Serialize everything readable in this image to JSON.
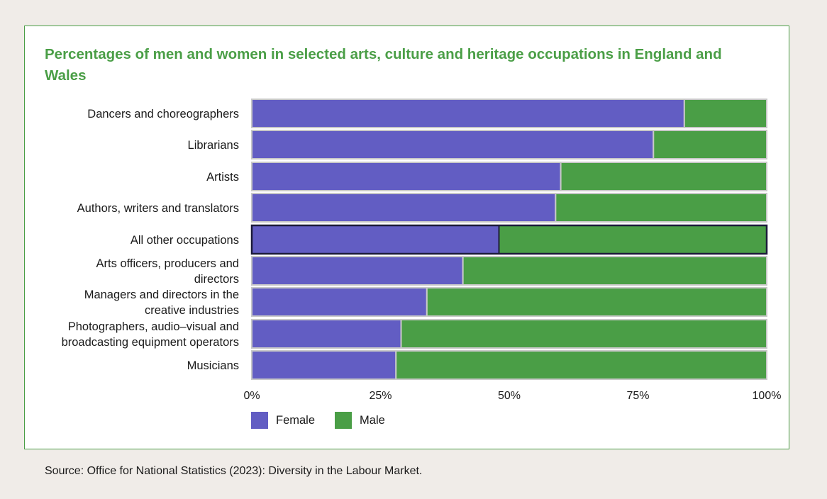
{
  "chart_data": {
    "type": "bar",
    "orientation": "horizontal",
    "stacked": true,
    "title": "Percentages of men and women in selected arts, culture and heritage occupations in England and Wales",
    "categories": [
      [
        "Dancers and choreographers"
      ],
      [
        "Librarians"
      ],
      [
        "Artists"
      ],
      [
        "Authors, writers and translators"
      ],
      [
        "All other occupations"
      ],
      [
        "Arts officers, producers and",
        "directors"
      ],
      [
        "Managers and directors in the",
        "creative industries"
      ],
      [
        "Photographers, audio–visual and",
        "broadcasting equipment operators"
      ],
      [
        "Musicians"
      ]
    ],
    "highlighted_category": "All other occupations",
    "series": [
      {
        "name": "Female",
        "color": "#625dc3",
        "values": [
          84,
          78,
          60,
          59,
          48,
          41,
          34,
          29,
          28
        ]
      },
      {
        "name": "Male",
        "color": "#4a9e46",
        "values": [
          16,
          22,
          40,
          41,
          52,
          59,
          66,
          71,
          72
        ]
      }
    ],
    "xticks": [
      "0%",
      "25%",
      "50%",
      "75%",
      "100%"
    ],
    "xlim": [
      0,
      100
    ],
    "legend_position": "bottom-left"
  },
  "source": "Source: Office for National Statistics (2023): Diversity in the Labour Market."
}
